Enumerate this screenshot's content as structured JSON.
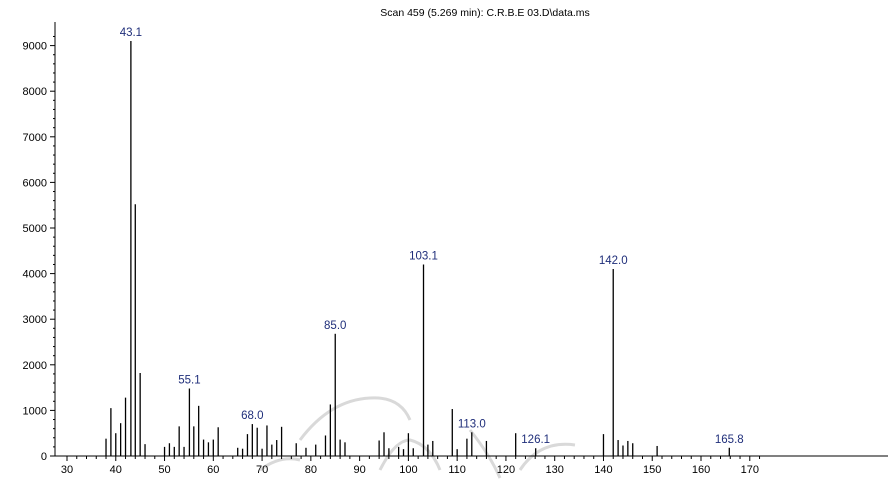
{
  "colors": {
    "bars": "#000000",
    "labels": "#1f2e7a",
    "axis": "#000000",
    "watermark": "#d9d9d9"
  },
  "chart_data": {
    "type": "bar",
    "title": "Scan 459 (5.269 min): C.R.B.E 03.D\\data.ms",
    "xlabel": "",
    "ylabel": "",
    "xlim": [
      30,
      172
    ],
    "ylim": [
      0,
      9400
    ],
    "x_ticks": [
      30,
      40,
      50,
      60,
      70,
      80,
      90,
      100,
      110,
      120,
      130,
      140,
      150,
      160,
      170
    ],
    "y_ticks": [
      0,
      1000,
      2000,
      3000,
      4000,
      5000,
      6000,
      7000,
      8000,
      9000
    ],
    "grid": false,
    "peaks": [
      {
        "x": 38.0,
        "y": 380
      },
      {
        "x": 39.0,
        "y": 1050
      },
      {
        "x": 40.0,
        "y": 500
      },
      {
        "x": 41.0,
        "y": 720
      },
      {
        "x": 42.0,
        "y": 1280
      },
      {
        "x": 43.1,
        "y": 9100
      },
      {
        "x": 44.0,
        "y": 5520
      },
      {
        "x": 45.0,
        "y": 1820
      },
      {
        "x": 46.0,
        "y": 260
      },
      {
        "x": 50.0,
        "y": 200
      },
      {
        "x": 51.0,
        "y": 280
      },
      {
        "x": 52.0,
        "y": 200
      },
      {
        "x": 53.0,
        "y": 650
      },
      {
        "x": 54.0,
        "y": 200
      },
      {
        "x": 55.1,
        "y": 1480
      },
      {
        "x": 56.0,
        "y": 650
      },
      {
        "x": 57.0,
        "y": 1100
      },
      {
        "x": 58.0,
        "y": 360
      },
      {
        "x": 59.0,
        "y": 300
      },
      {
        "x": 60.0,
        "y": 360
      },
      {
        "x": 61.0,
        "y": 630
      },
      {
        "x": 65.0,
        "y": 180
      },
      {
        "x": 66.0,
        "y": 160
      },
      {
        "x": 67.0,
        "y": 480
      },
      {
        "x": 68.0,
        "y": 700
      },
      {
        "x": 69.0,
        "y": 620
      },
      {
        "x": 70.0,
        "y": 160
      },
      {
        "x": 71.0,
        "y": 670
      },
      {
        "x": 72.0,
        "y": 250
      },
      {
        "x": 73.0,
        "y": 350
      },
      {
        "x": 74.0,
        "y": 640
      },
      {
        "x": 77.0,
        "y": 280
      },
      {
        "x": 79.0,
        "y": 180
      },
      {
        "x": 81.0,
        "y": 250
      },
      {
        "x": 83.0,
        "y": 450
      },
      {
        "x": 84.0,
        "y": 1130
      },
      {
        "x": 85.0,
        "y": 2680
      },
      {
        "x": 86.0,
        "y": 360
      },
      {
        "x": 87.0,
        "y": 300
      },
      {
        "x": 94.0,
        "y": 340
      },
      {
        "x": 95.0,
        "y": 520
      },
      {
        "x": 96.0,
        "y": 170
      },
      {
        "x": 98.0,
        "y": 200
      },
      {
        "x": 99.0,
        "y": 150
      },
      {
        "x": 100.0,
        "y": 500
      },
      {
        "x": 101.0,
        "y": 170
      },
      {
        "x": 103.1,
        "y": 4200
      },
      {
        "x": 104.0,
        "y": 250
      },
      {
        "x": 105.0,
        "y": 330
      },
      {
        "x": 109.0,
        "y": 1030
      },
      {
        "x": 110.0,
        "y": 150
      },
      {
        "x": 112.0,
        "y": 380
      },
      {
        "x": 113.0,
        "y": 520
      },
      {
        "x": 116.0,
        "y": 330
      },
      {
        "x": 122.0,
        "y": 500
      },
      {
        "x": 126.1,
        "y": 170
      },
      {
        "x": 140.0,
        "y": 480
      },
      {
        "x": 142.0,
        "y": 4100
      },
      {
        "x": 143.0,
        "y": 350
      },
      {
        "x": 144.0,
        "y": 230
      },
      {
        "x": 145.0,
        "y": 330
      },
      {
        "x": 146.0,
        "y": 280
      },
      {
        "x": 151.0,
        "y": 220
      },
      {
        "x": 165.8,
        "y": 180
      }
    ],
    "annotations": [
      {
        "label": "43.1",
        "x": 43.1,
        "y": 9100
      },
      {
        "label": "55.1",
        "x": 55.1,
        "y": 1480
      },
      {
        "label": "68.0",
        "x": 68.0,
        "y": 700
      },
      {
        "label": "85.0",
        "x": 85.0,
        "y": 2680
      },
      {
        "label": "103.1",
        "x": 103.1,
        "y": 4200
      },
      {
        "label": "113.0",
        "x": 113.0,
        "y": 520
      },
      {
        "label": "126.1",
        "x": 126.1,
        "y": 170
      },
      {
        "label": "142.0",
        "x": 142.0,
        "y": 4100
      },
      {
        "label": "165.8",
        "x": 165.8,
        "y": 180
      }
    ]
  }
}
